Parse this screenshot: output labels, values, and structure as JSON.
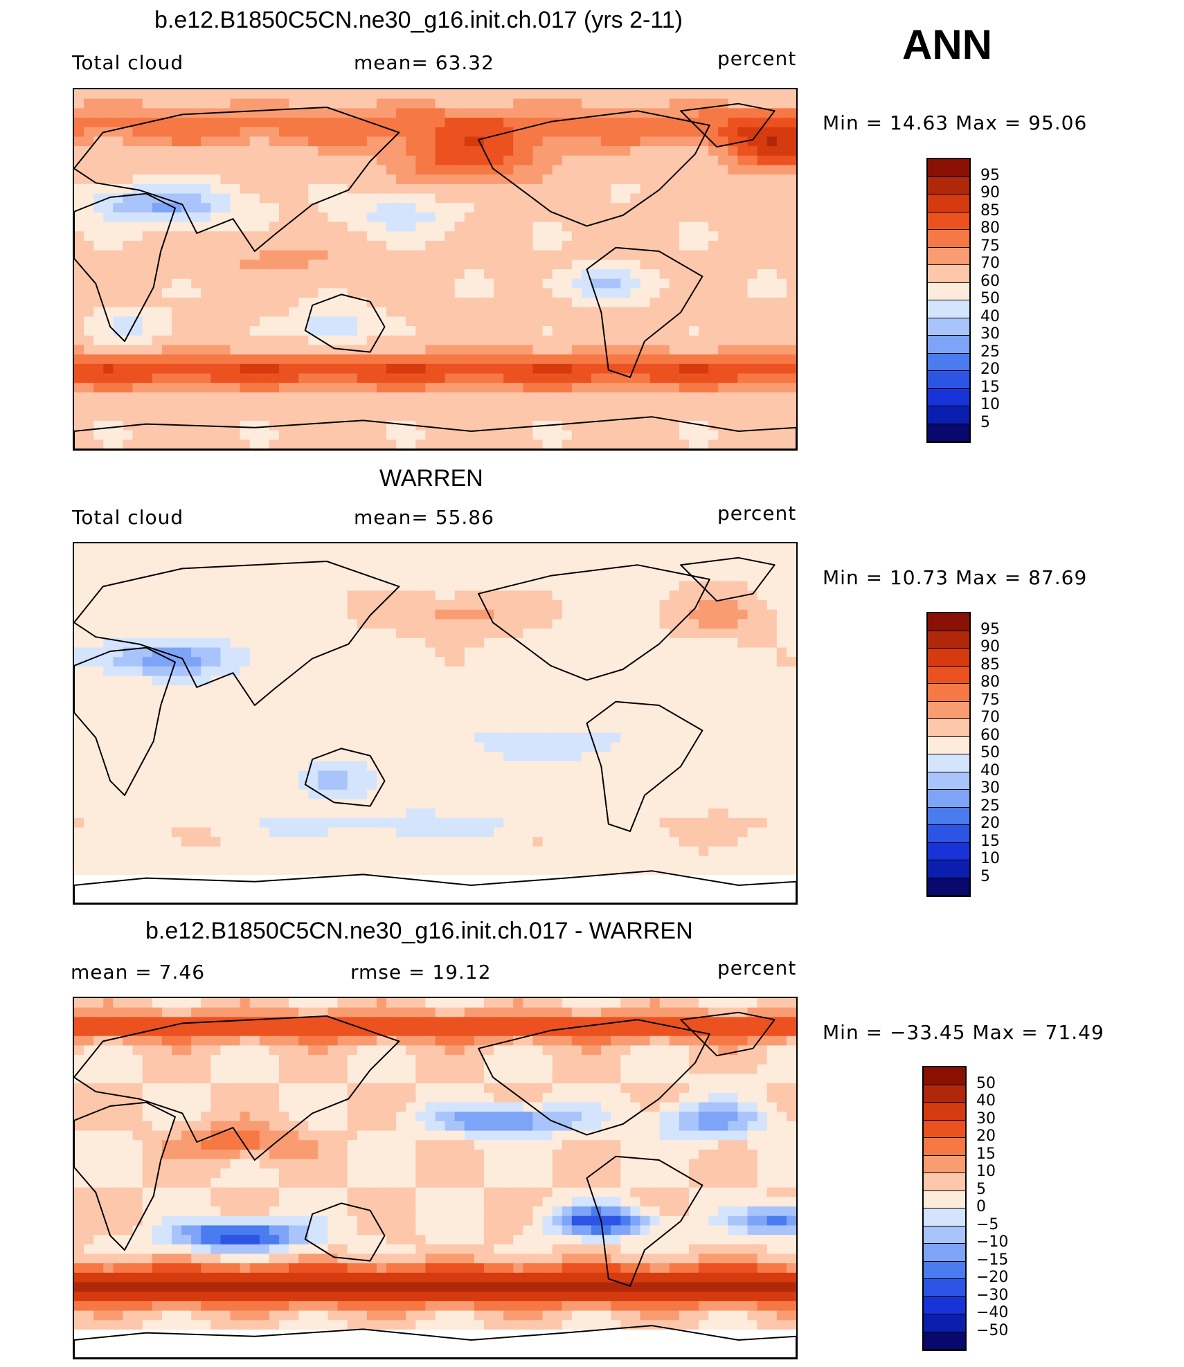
{
  "season": "ANN",
  "palettes": {
    "field": [
      "#08086e",
      "#0a1fb0",
      "#1733d9",
      "#2c55e6",
      "#4a7cf0",
      "#7ea4f7",
      "#a8c4fb",
      "#d4e4fc",
      "#fdebdc",
      "#fcc7ab",
      "#fa9c72",
      "#f67845",
      "#ec5120",
      "#d63a0f",
      "#b02809",
      "#8a1004"
    ],
    "diff": [
      "#08086e",
      "#0a1fb0",
      "#1733d9",
      "#2c55e6",
      "#4a7cf0",
      "#7ea4f7",
      "#a8c4fb",
      "#d4e4fc",
      "#fdebdc",
      "#fcc7ab",
      "#fa9c72",
      "#f67845",
      "#ec5120",
      "#d63a0f",
      "#b02809",
      "#8a1004"
    ]
  },
  "chart_data": [
    {
      "type": "heatmap",
      "title": "b.e12.B1850C5CN.ne30_g16.init.ch.017 (yrs 2-11)",
      "left_label": "Total cloud",
      "mean_text": "mean=   63.32",
      "units": "percent",
      "minmax_text": "Min =    14.63  Max =    95.06",
      "min": 14.63,
      "max": 95.06,
      "mean": 63.32,
      "colorbar_levels": [
        "95",
        "90",
        "85",
        "80",
        "75",
        "70",
        "60",
        "50",
        "40",
        "30",
        "25",
        "20",
        "15",
        "10",
        "5"
      ],
      "palette": "field"
    },
    {
      "type": "heatmap",
      "title": "WARREN",
      "left_label": "Total cloud",
      "mean_text": "mean=   55.86",
      "units": "percent",
      "minmax_text": "Min =    10.73  Max =    87.69",
      "min": 10.73,
      "max": 87.69,
      "mean": 55.86,
      "colorbar_levels": [
        "95",
        "90",
        "85",
        "80",
        "75",
        "70",
        "60",
        "50",
        "40",
        "30",
        "25",
        "20",
        "15",
        "10",
        "5"
      ],
      "palette": "field"
    },
    {
      "type": "heatmap",
      "title": "b.e12.B1850C5CN.ne30_g16.init.ch.017 - WARREN",
      "left_label": "mean =     7.46",
      "mean_text": "rmse =    19.12",
      "units": "percent",
      "minmax_text": "Min = −33.45  Max =    71.49",
      "min": -33.45,
      "max": 71.49,
      "mean": 7.46,
      "rmse": 19.12,
      "colorbar_levels": [
        "50",
        "40",
        "30",
        "20",
        "15",
        "10",
        "5",
        "0",
        "−5",
        "−10",
        "−15",
        "−20",
        "−30",
        "−40",
        "−50"
      ],
      "palette": "diff"
    }
  ]
}
